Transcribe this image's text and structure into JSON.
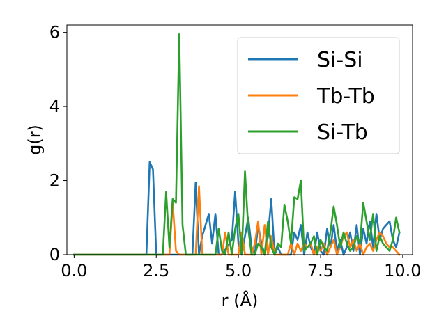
{
  "chart_data": {
    "type": "line",
    "title": "",
    "xlabel": "r (Å)",
    "ylabel": "g(r)",
    "xlim": [
      -0.22,
      10.3
    ],
    "ylim": [
      0,
      6.2
    ],
    "xticks": [
      0.0,
      2.5,
      5.0,
      7.5,
      10.0
    ],
    "xtick_labels": [
      "0.0",
      "2.5",
      "5.0",
      "7.5",
      "10.0"
    ],
    "yticks": [
      0,
      2,
      4,
      6
    ],
    "ytick_labels": [
      "0",
      "2",
      "4",
      "6"
    ],
    "grid": false,
    "legend_position": "top-right",
    "series": [
      {
        "name": "Si-Si",
        "color": "#1f77b4",
        "x": [
          0.0,
          1.0,
          2.2,
          2.3,
          2.4,
          2.5,
          3.6,
          3.7,
          3.8,
          3.9,
          4.0,
          4.1,
          4.2,
          4.3,
          4.4,
          4.5,
          4.8,
          4.9,
          5.0,
          5.1,
          5.2,
          5.3,
          5.4,
          5.5,
          5.6,
          5.7,
          5.8,
          5.9,
          6.0,
          6.1,
          6.2,
          6.3,
          6.6,
          6.7,
          6.8,
          6.9,
          7.0,
          7.1,
          7.2,
          7.3,
          7.4,
          7.5,
          7.6,
          7.7,
          7.8,
          7.9,
          8.0,
          8.1,
          8.2,
          8.3,
          8.4,
          8.5,
          8.6,
          8.7,
          8.8,
          8.9,
          9.0,
          9.1,
          9.2,
          9.3,
          9.4,
          9.5,
          9.6,
          9.7,
          9.8,
          9.9
        ],
        "values": [
          0,
          0,
          0,
          2.5,
          2.3,
          0,
          0,
          1.95,
          0,
          0.5,
          0.8,
          1.1,
          0.3,
          1.1,
          0,
          0,
          0.4,
          1.7,
          0.3,
          0,
          0.5,
          1.0,
          0.2,
          0,
          0.8,
          0.3,
          0,
          0.5,
          1.5,
          0,
          0.2,
          0,
          0,
          0.6,
          0.4,
          0.8,
          0,
          0.6,
          0.2,
          0,
          0.6,
          0.1,
          0,
          0.7,
          0.2,
          0.8,
          0.1,
          0.4,
          0,
          0.2,
          0.6,
          0.1,
          0.8,
          0,
          0.7,
          0.3,
          0.9,
          0.2,
          1.1,
          0.4,
          0.7,
          0.8,
          0.9,
          0.4,
          0.2,
          0.6
        ]
      },
      {
        "name": "Tb-Tb",
        "color": "#ff7f0e",
        "x": [
          0.0,
          1.0,
          2.9,
          3.0,
          3.1,
          3.2,
          3.7,
          3.8,
          3.9,
          4.0,
          4.5,
          4.6,
          4.7,
          5.0,
          5.1,
          5.2,
          5.4,
          5.5,
          5.6,
          5.7,
          5.8,
          5.9,
          6.0,
          6.1,
          6.2,
          6.5,
          6.6,
          6.7,
          6.8,
          6.9,
          7.0,
          7.1,
          7.2,
          7.3,
          7.4,
          7.5,
          7.6,
          7.7,
          7.8,
          7.9,
          8.0,
          8.1,
          8.2,
          8.3,
          8.4,
          8.5,
          8.6,
          8.7,
          8.8,
          8.9,
          9.0,
          9.1,
          9.2,
          9.3,
          9.4,
          9.5,
          9.6,
          9.7,
          9.8,
          9.9
        ],
        "values": [
          0,
          0,
          0,
          1.4,
          0.1,
          0,
          0,
          1.85,
          0,
          0,
          0,
          0.6,
          0,
          0,
          0.6,
          0,
          0,
          0.3,
          0.9,
          0,
          0.8,
          0,
          0.5,
          0,
          0,
          0,
          0.3,
          0,
          0.3,
          0.1,
          0.3,
          0.2,
          0.3,
          0,
          0.2,
          0.1,
          0.3,
          0,
          0.2,
          0.4,
          0,
          0.2,
          0.5,
          0.6,
          0.2,
          0.4,
          0.1,
          0.3,
          0,
          0.2,
          0.3,
          0.1,
          0.4,
          0.6,
          0.5,
          0.3,
          0.2,
          0.2,
          0.1,
          0
        ]
      },
      {
        "name": "Si-Tb",
        "color": "#2ca02c",
        "x": [
          0.0,
          1.0,
          2.7,
          2.8,
          2.9,
          3.0,
          3.1,
          3.2,
          3.3,
          3.4,
          4.3,
          4.4,
          4.5,
          4.6,
          4.7,
          4.8,
          4.9,
          5.0,
          5.1,
          5.2,
          5.3,
          5.4,
          5.5,
          5.6,
          5.7,
          5.8,
          5.9,
          6.0,
          6.1,
          6.2,
          6.3,
          6.4,
          6.5,
          6.6,
          6.7,
          6.8,
          6.9,
          7.0,
          7.1,
          7.2,
          7.3,
          7.4,
          7.5,
          7.6,
          7.7,
          7.8,
          7.9,
          8.0,
          8.1,
          8.2,
          8.3,
          8.4,
          8.5,
          8.6,
          8.7,
          8.8,
          8.9,
          9.0,
          9.1,
          9.2,
          9.3,
          9.4,
          9.5,
          9.6,
          9.7,
          9.8,
          9.9
        ],
        "values": [
          0,
          0,
          0,
          1.7,
          0.2,
          1.5,
          1.4,
          5.95,
          0.8,
          0,
          0,
          0.7,
          0.1,
          0,
          0.6,
          0,
          0.7,
          1.1,
          0,
          2.25,
          0.7,
          0,
          0,
          0.3,
          0.2,
          0,
          0.9,
          0.2,
          0,
          0.3,
          0.2,
          1.35,
          0.9,
          0.3,
          1.55,
          1.5,
          2.0,
          0.1,
          0.2,
          0.3,
          0.5,
          0,
          0.4,
          0.2,
          0.1,
          0.6,
          1.3,
          0.8,
          0.2,
          0.6,
          0.3,
          0.1,
          0.2,
          0.5,
          0.3,
          1.4,
          0.9,
          0.4,
          1.1,
          0.1,
          0.5,
          0.3,
          0.2,
          0.1,
          0.4,
          1.0,
          0.6
        ]
      }
    ]
  }
}
